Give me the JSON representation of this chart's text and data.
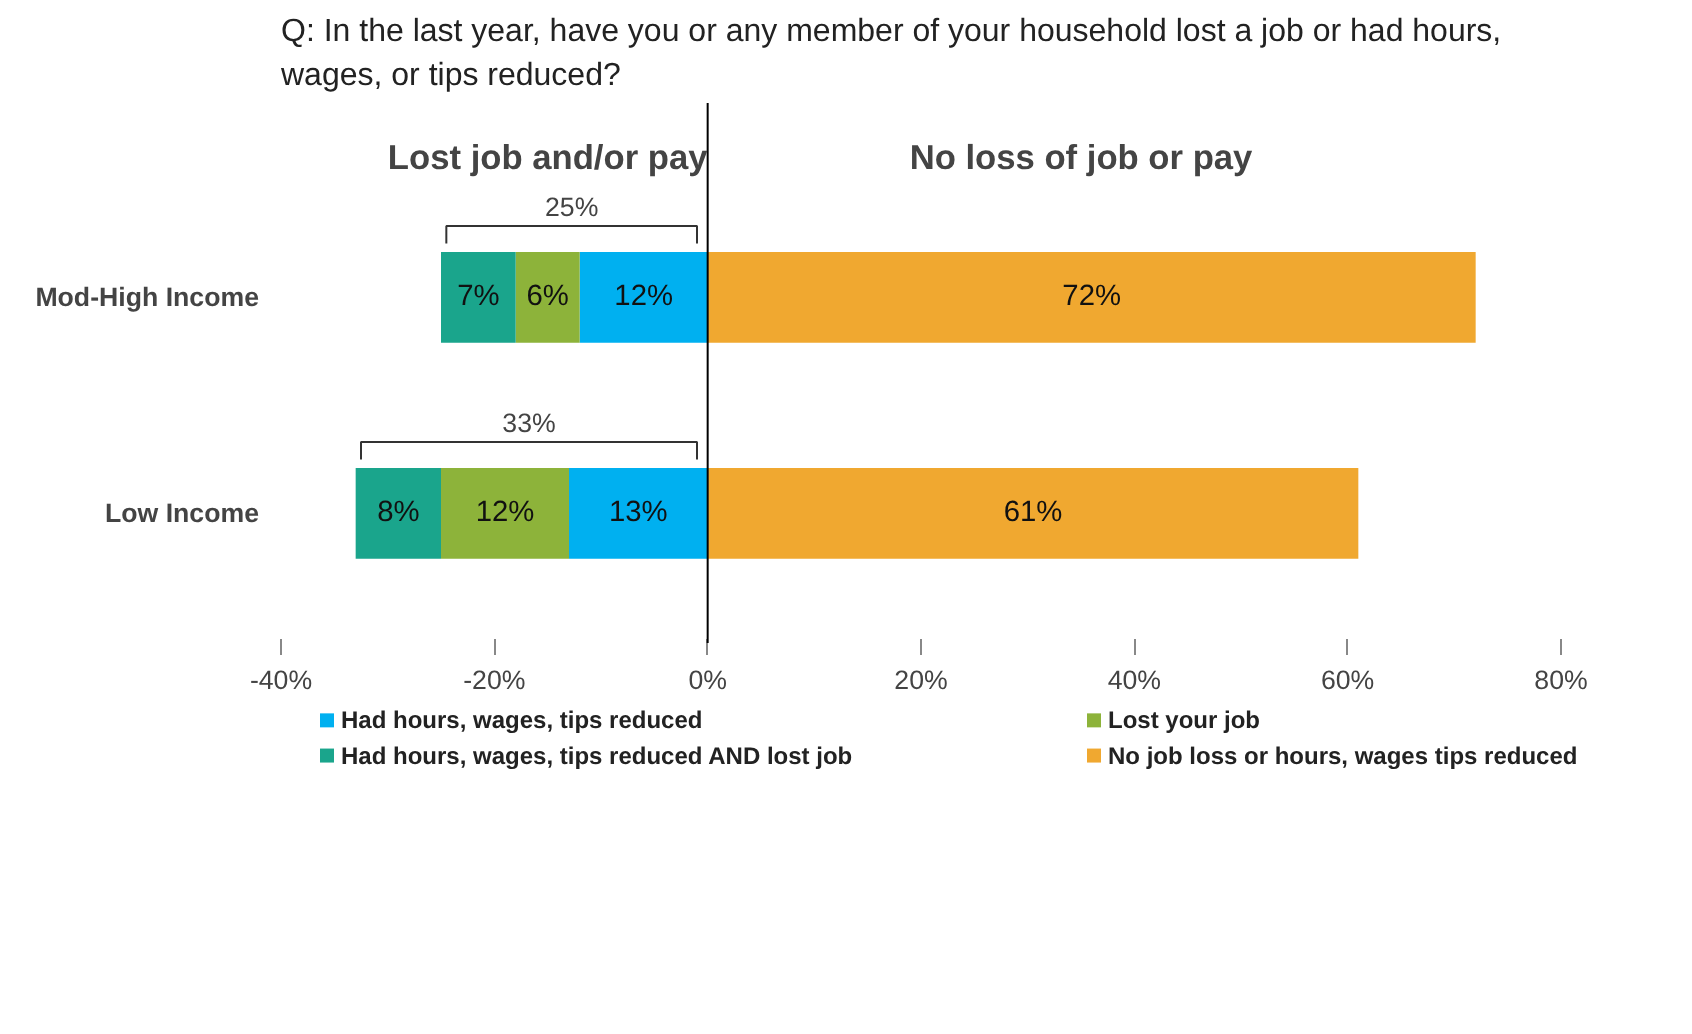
{
  "chart_data": {
    "type": "bar",
    "orientation": "horizontal",
    "title": "Q:  In the last year, have you or any member of your household lost a job or had hours, wages, or tips reduced?",
    "categories": [
      "Mod-High Income",
      "Low Income"
    ],
    "series": [
      {
        "name": "Had hours, wages, tips reduced",
        "color": "#00b0f0",
        "values": [
          12,
          13
        ],
        "base": [
          -12,
          -13
        ],
        "value_labels": [
          "12%",
          "13%"
        ]
      },
      {
        "name": "Lost your job",
        "color": "#8db33a",
        "values": [
          6,
          12
        ],
        "base": [
          -18,
          -25
        ],
        "value_labels": [
          "6%",
          "12%"
        ]
      },
      {
        "name": "Had hours, wages, tips reduced AND lost job",
        "color": "#1aa58c",
        "values": [
          7,
          8
        ],
        "base": [
          -25,
          -33
        ],
        "value_labels": [
          "7%",
          "8%"
        ]
      },
      {
        "name": "No job loss or hours, wages tips reduced",
        "color": "#f0a830",
        "values": [
          72,
          61
        ],
        "value_labels": [
          "72%",
          "61%"
        ]
      }
    ],
    "xlim": [
      -40,
      80
    ],
    "xticks": [
      {
        "value": -40,
        "label": "-40%"
      },
      {
        "value": -20,
        "label": "-20%"
      },
      {
        "value": 0,
        "label": "0%"
      },
      {
        "value": 20,
        "label": "20%"
      },
      {
        "value": 40,
        "label": "40%"
      },
      {
        "value": 60,
        "label": "60%"
      },
      {
        "value": 80,
        "label": "80%"
      }
    ],
    "ref_lines": [
      {
        "axis": "x",
        "value": 0,
        "color": "#000000"
      }
    ],
    "annotations": [
      "Lost job and/or pay",
      "No loss of job or pay",
      "25%",
      "33%"
    ],
    "grid": false,
    "legend": "bottom"
  }
}
